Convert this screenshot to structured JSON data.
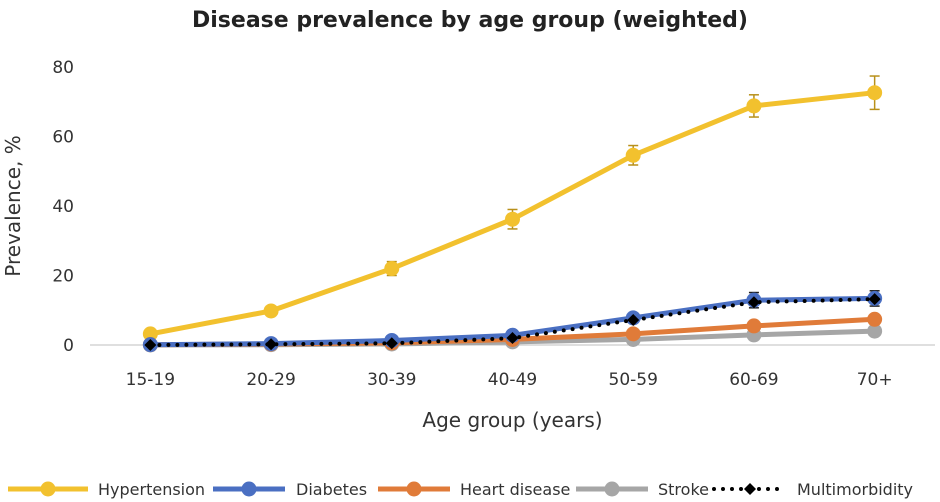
{
  "chart_data": {
    "type": "line",
    "title": "Disease prevalence by age group (weighted)",
    "xlabel": "Age group (years)",
    "ylabel": "Prevalence, %",
    "ylim": [
      0,
      80
    ],
    "yticks": [
      "0",
      "20",
      "40",
      "60",
      "80"
    ],
    "categories": [
      "15-19",
      "20-29",
      "30-39",
      "40-49",
      "50-59",
      "60-69",
      "70+"
    ],
    "legend_position": "bottom",
    "series": [
      {
        "name": "Hypertension",
        "color": "#F2C12E",
        "marker": "circle",
        "line": "solid",
        "values": [
          3.2,
          9.8,
          22.0,
          36.2,
          54.6,
          68.8,
          72.6
        ],
        "error": [
          0.5,
          0.8,
          2.0,
          2.8,
          2.8,
          3.2,
          4.8
        ]
      },
      {
        "name": "Diabetes",
        "color": "#4A6FC2",
        "marker": "circle",
        "line": "solid",
        "values": [
          0.1,
          0.4,
          1.3,
          2.8,
          7.8,
          12.9,
          13.4
        ],
        "error": [
          0.1,
          0.2,
          0.4,
          0.6,
          1.2,
          2.2,
          2.2
        ]
      },
      {
        "name": "Heart disease",
        "color": "#E07B39",
        "marker": "circle",
        "line": "solid",
        "values": [
          0.1,
          0.3,
          0.6,
          1.6,
          3.2,
          5.5,
          7.4
        ],
        "error": [
          0,
          0,
          0,
          0,
          0,
          0,
          0
        ]
      },
      {
        "name": "Stroke",
        "color": "#A6A6A6",
        "marker": "circle",
        "line": "solid",
        "values": [
          0.0,
          0.1,
          0.3,
          0.9,
          1.6,
          2.9,
          4.0
        ],
        "error": [
          0,
          0,
          0,
          0,
          0,
          0,
          0
        ]
      },
      {
        "name": "Multimorbidity",
        "color": "#000000",
        "marker": "diamond",
        "line": "dotted",
        "values": [
          0.0,
          0.2,
          0.5,
          2.0,
          7.2,
          12.3,
          13.2
        ],
        "error": [
          0,
          0,
          0,
          0,
          0,
          0,
          0
        ]
      }
    ]
  }
}
